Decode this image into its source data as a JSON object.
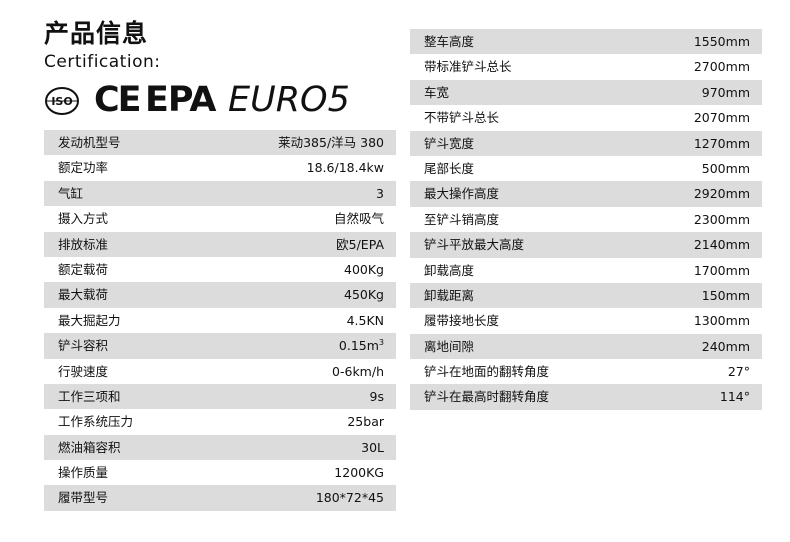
{
  "title": "产品信息",
  "certification_label": "Certification:",
  "cert_logos": {
    "iso": "ISO",
    "ce": "CE",
    "epa": "EPA",
    "euro": "EURO5"
  },
  "left_specs": [
    {
      "label": "发动机型号",
      "value": "莱动385/洋马 380"
    },
    {
      "label": "额定功率",
      "value": "18.6/18.4kw"
    },
    {
      "label": "气缸",
      "value": "3"
    },
    {
      "label": "摄入方式",
      "value": "自然吸气"
    },
    {
      "label": "排放标准",
      "value": "欧5/EPA"
    },
    {
      "label": "额定载荷",
      "value": "400Kg"
    },
    {
      "label": "最大载荷",
      "value": "450Kg"
    },
    {
      "label": "最大掘起力",
      "value": "4.5KN"
    },
    {
      "label": "铲斗容积",
      "value": "0.15m",
      "sup": "3"
    },
    {
      "label": "行驶速度",
      "value": "0-6km/h"
    },
    {
      "label": "工作三项和",
      "value": "9s"
    },
    {
      "label": "工作系统压力",
      "value": "25bar"
    },
    {
      "label": "燃油箱容积",
      "value": "30L"
    },
    {
      "label": "操作质量",
      "value": "1200KG"
    },
    {
      "label": "履带型号",
      "value": "180*72*45"
    }
  ],
  "right_specs": [
    {
      "label": "整车高度",
      "value": "1550mm"
    },
    {
      "label": "带标准铲斗总长",
      "value": "2700mm"
    },
    {
      "label": "车宽",
      "value": "970mm"
    },
    {
      "label": "不带铲斗总长",
      "value": "2070mm"
    },
    {
      "label": "铲斗宽度",
      "value": "1270mm"
    },
    {
      "label": "尾部长度",
      "value": "500mm"
    },
    {
      "label": "最大操作高度",
      "value": "2920mm"
    },
    {
      "label": "至铲斗销高度",
      "value": "2300mm"
    },
    {
      "label": "铲斗平放最大高度",
      "value": "2140mm"
    },
    {
      "label": "卸载高度",
      "value": "1700mm"
    },
    {
      "label": "卸载距离",
      "value": "150mm"
    },
    {
      "label": "履带接地长度",
      "value": "1300mm"
    },
    {
      "label": "离地间隙",
      "value": "240mm"
    },
    {
      "label": "铲斗在地面的翻转角度",
      "value": "27°"
    },
    {
      "label": "铲斗在最高时翻转角度",
      "value": "114°"
    }
  ]
}
